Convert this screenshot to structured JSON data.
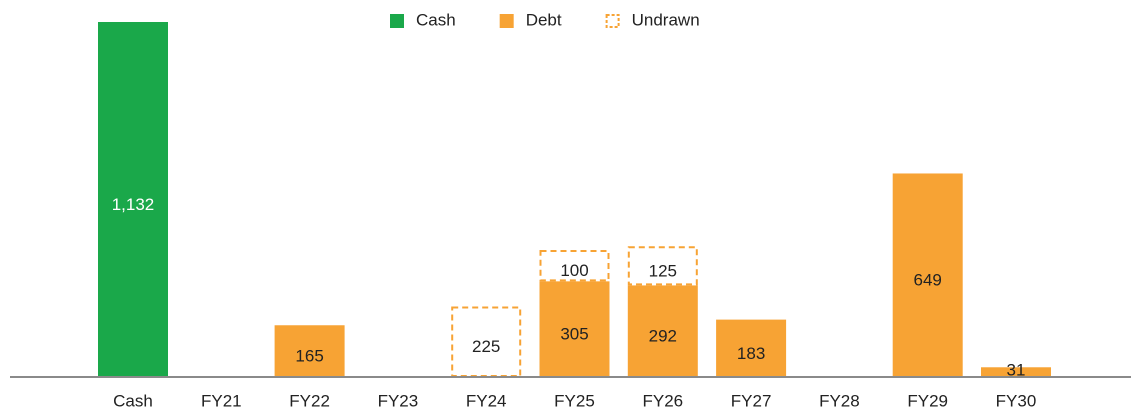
{
  "chart_data": {
    "type": "bar",
    "stacked": true,
    "categories": [
      "Cash",
      "FY21",
      "FY22",
      "FY23",
      "FY24",
      "FY25",
      "FY26",
      "FY27",
      "FY28",
      "FY29",
      "FY30"
    ],
    "series": [
      {
        "name": "Cash",
        "color": "#1aa84a",
        "style": "solid",
        "label_color": "#ffffff",
        "values": [
          1132,
          null,
          null,
          null,
          null,
          null,
          null,
          null,
          null,
          null,
          null
        ],
        "value_labels": [
          "1,132",
          null,
          null,
          null,
          null,
          null,
          null,
          null,
          null,
          null,
          null
        ]
      },
      {
        "name": "Debt",
        "color": "#f7a334",
        "style": "solid",
        "label_color": "#222222",
        "values": [
          null,
          null,
          165,
          null,
          null,
          305,
          292,
          183,
          null,
          649,
          31
        ]
      },
      {
        "name": "Undrawn",
        "color": "#f7a334",
        "style": "dashed",
        "label_color": "#222222",
        "values": [
          null,
          null,
          null,
          null,
          225,
          100,
          125,
          null,
          null,
          null,
          null
        ]
      }
    ],
    "legend": "top"
  }
}
